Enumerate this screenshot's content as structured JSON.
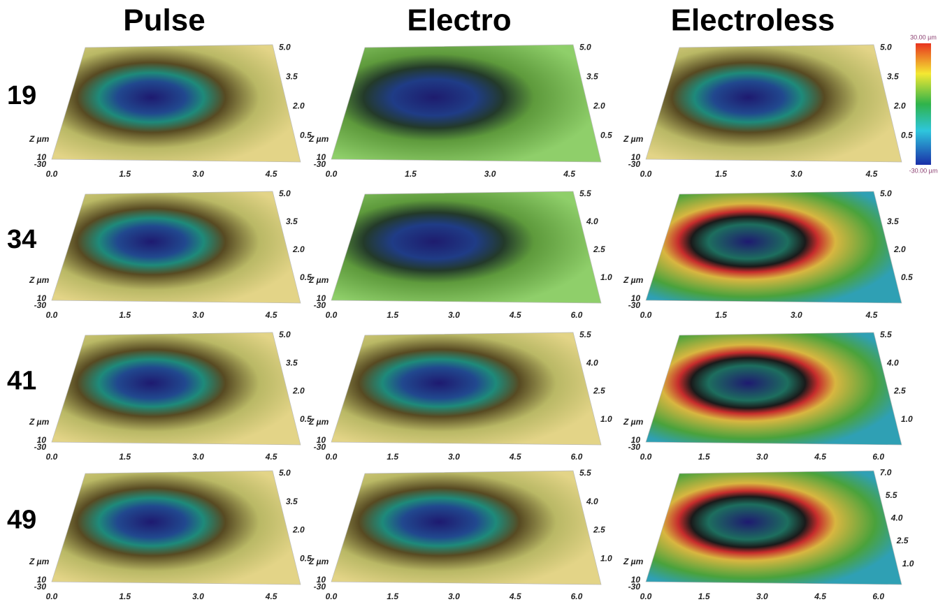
{
  "columns": [
    "Pulse",
    "Electro",
    "Electroless"
  ],
  "rows": [
    {
      "label": "19",
      "panels": [
        {
          "x_ticks": [
            "0.0",
            "1.5",
            "3.0",
            "4.5"
          ],
          "y_ticks": [
            "5.0",
            "3.5",
            "2.0",
            "0.5"
          ],
          "z_label": "Z µm",
          "z_ticks": [
            "10",
            "-30"
          ]
        },
        {
          "x_ticks": [
            "0.0",
            "1.5",
            "3.0",
            "4.5"
          ],
          "y_ticks": [
            "5.0",
            "3.5",
            "2.0",
            "0.5"
          ],
          "z_label": "Z µm",
          "z_ticks": [
            "10",
            "-30"
          ]
        },
        {
          "x_ticks": [
            "0.0",
            "1.5",
            "3.0",
            "4.5"
          ],
          "y_ticks": [
            "5.0",
            "3.5",
            "2.0",
            "0.5"
          ],
          "z_label": "Z µm",
          "z_ticks": [
            "10",
            "-30"
          ]
        }
      ]
    },
    {
      "label": "34",
      "panels": [
        {
          "x_ticks": [
            "0.0",
            "1.5",
            "3.0",
            "4.5"
          ],
          "y_ticks": [
            "5.0",
            "3.5",
            "2.0",
            "0.5"
          ],
          "z_label": "Z µm",
          "z_ticks": [
            "10",
            "-30"
          ]
        },
        {
          "x_ticks": [
            "0.0",
            "1.5",
            "3.0",
            "4.5",
            "6.0"
          ],
          "y_ticks": [
            "5.5",
            "4.0",
            "2.5",
            "1.0"
          ],
          "z_label": "Z µm",
          "z_ticks": [
            "10",
            "-30"
          ]
        },
        {
          "x_ticks": [
            "0.0",
            "1.5",
            "3.0",
            "4.5"
          ],
          "y_ticks": [
            "5.0",
            "3.5",
            "2.0",
            "0.5"
          ],
          "z_label": "Z µm",
          "z_ticks": [
            "10",
            "-30"
          ]
        }
      ]
    },
    {
      "label": "41",
      "panels": [
        {
          "x_ticks": [
            "0.0",
            "1.5",
            "3.0",
            "4.5"
          ],
          "y_ticks": [
            "5.0",
            "3.5",
            "2.0",
            "0.5"
          ],
          "z_label": "Z µm",
          "z_ticks": [
            "10",
            "-30"
          ]
        },
        {
          "x_ticks": [
            "0.0",
            "1.5",
            "3.0",
            "4.5",
            "6.0"
          ],
          "y_ticks": [
            "5.5",
            "4.0",
            "2.5",
            "1.0"
          ],
          "z_label": "Z µm",
          "z_ticks": [
            "10",
            "-30"
          ]
        },
        {
          "x_ticks": [
            "0.0",
            "1.5",
            "3.0",
            "4.5",
            "6.0"
          ],
          "y_ticks": [
            "5.5",
            "4.0",
            "2.5",
            "1.0"
          ],
          "z_label": "Z µm",
          "z_ticks": [
            "10",
            "-30"
          ]
        }
      ]
    },
    {
      "label": "49",
      "panels": [
        {
          "x_ticks": [
            "0.0",
            "1.5",
            "3.0",
            "4.5"
          ],
          "y_ticks": [
            "5.0",
            "3.5",
            "2.0",
            "0.5"
          ],
          "z_label": "Z µm",
          "z_ticks": [
            "10",
            "-30"
          ]
        },
        {
          "x_ticks": [
            "0.0",
            "1.5",
            "3.0",
            "4.5",
            "6.0"
          ],
          "y_ticks": [
            "5.5",
            "4.0",
            "2.5",
            "1.0"
          ],
          "z_label": "Z µm",
          "z_ticks": [
            "10",
            "-30"
          ]
        },
        {
          "x_ticks": [
            "0.0",
            "1.5",
            "3.0",
            "4.5",
            "6.0"
          ],
          "y_ticks": [
            "7.0",
            "5.5",
            "4.0",
            "2.5",
            "1.0"
          ],
          "z_label": "Z µm",
          "z_ticks": [
            "10",
            "-30"
          ]
        }
      ]
    }
  ],
  "colorbar": {
    "max": "30.00 µm",
    "min": "-30.00 µm"
  }
}
